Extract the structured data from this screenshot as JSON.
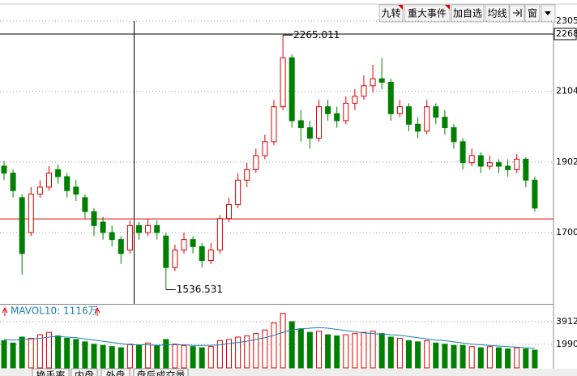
{
  "toolbar": {
    "buttons": [
      "九转",
      "重大事件",
      "加自选",
      "均线",
      "窗"
    ]
  },
  "chart_data": {
    "type": "candlestick",
    "open": [
      1890,
      1870,
      1800,
      1700,
      1810,
      1830,
      1880,
      1860,
      1830,
      1800,
      1760,
      1730,
      1700,
      1680,
      1650,
      1720,
      1700,
      1720,
      1690,
      1600,
      1650,
      1680,
      1660,
      1620,
      1650,
      1740,
      1780,
      1850,
      1880,
      1920,
      1960,
      2060,
      2200,
      2020,
      2000,
      1970,
      2060,
      2040,
      2020,
      2070,
      2090,
      2120,
      2140,
      2130,
      2040,
      2060,
      2010,
      1990,
      2060,
      2030,
      2000,
      1960,
      1900,
      1920,
      1890,
      1900,
      1890,
      1880,
      1910,
      1850
    ],
    "high": [
      1905,
      1880,
      1810,
      1830,
      1850,
      1890,
      1895,
      1870,
      1850,
      1810,
      1770,
      1745,
      1720,
      1690,
      1735,
      1730,
      1740,
      1735,
      1700,
      1665,
      1700,
      1690,
      1670,
      1670,
      1750,
      1800,
      1870,
      1900,
      1940,
      1980,
      2080,
      2265.011,
      2210,
      2050,
      2020,
      2080,
      2080,
      2060,
      2090,
      2110,
      2150,
      2180,
      2200,
      2140,
      2080,
      2070,
      2030,
      2080,
      2070,
      2050,
      2010,
      1970,
      1940,
      1930,
      1920,
      1910,
      1910,
      1925,
      1915,
      1860
    ],
    "low": [
      1850,
      1800,
      1580,
      1690,
      1800,
      1820,
      1840,
      1800,
      1790,
      1740,
      1690,
      1680,
      1660,
      1610,
      1640,
      1680,
      1690,
      1680,
      1536.531,
      1590,
      1640,
      1640,
      1600,
      1610,
      1640,
      1730,
      1770,
      1830,
      1870,
      1910,
      1950,
      2050,
      2000,
      1960,
      1940,
      1960,
      2020,
      2000,
      2010,
      2050,
      2080,
      2100,
      2110,
      2020,
      2030,
      1990,
      1970,
      1980,
      2010,
      1980,
      1940,
      1880,
      1890,
      1870,
      1880,
      1870,
      1860,
      1870,
      1830,
      1760
    ],
    "close": [
      1870,
      1820,
      1640,
      1810,
      1830,
      1870,
      1860,
      1820,
      1810,
      1760,
      1720,
      1700,
      1680,
      1640,
      1720,
      1700,
      1720,
      1700,
      1600,
      1650,
      1680,
      1660,
      1620,
      1650,
      1740,
      1780,
      1850,
      1880,
      1920,
      1960,
      2060,
      2200,
      2020,
      2000,
      1970,
      2060,
      2040,
      2020,
      2070,
      2090,
      2120,
      2140,
      2130,
      2040,
      2060,
      2010,
      1990,
      2060,
      2030,
      2000,
      1960,
      1900,
      1920,
      1890,
      1900,
      1890,
      1880,
      1910,
      1850,
      1770
    ],
    "up_color": "#e00000",
    "down_color": "#008000",
    "ylim": [
      1496,
      2305
    ],
    "yticks": [
      2305,
      2268,
      2104,
      1902,
      1700
    ],
    "grid": true,
    "ref_line": 1739,
    "ref_color": "#e00000",
    "annotations": [
      {
        "index": 31,
        "field": "high"
      },
      {
        "index": 18,
        "field": "low"
      }
    ],
    "volume": {
      "label": "MAVOL10: 1116万",
      "values": [
        2300,
        2100,
        2600,
        2500,
        2800,
        3000,
        2700,
        2500,
        2400,
        2200,
        2000,
        1900,
        1800,
        1700,
        2000,
        1900,
        2100,
        1900,
        2400,
        2000,
        1900,
        1800,
        1700,
        1800,
        2300,
        2400,
        2600,
        2700,
        2900,
        3200,
        3800,
        4600,
        3900,
        3300,
        3000,
        3100,
        2800,
        2700,
        2800,
        2900,
        3000,
        3100,
        2900,
        2600,
        2500,
        2300,
        2200,
        2300,
        2100,
        2000,
        1900,
        1900,
        1800,
        1700,
        1800,
        1700,
        1600,
        1700,
        1600,
        1500
      ],
      "ma": [
        2400,
        2350,
        2400,
        2450,
        2500,
        2600,
        2650,
        2600,
        2550,
        2450,
        2350,
        2250,
        2150,
        2050,
        1950,
        1950,
        1950,
        1900,
        1950,
        1950,
        1950,
        1900,
        1900,
        1900,
        1950,
        2050,
        2150,
        2250,
        2400,
        2550,
        2750,
        3000,
        3200,
        3300,
        3350,
        3400,
        3350,
        3250,
        3150,
        3050,
        2950,
        2900,
        2850,
        2800,
        2750,
        2650,
        2550,
        2450,
        2350,
        2300,
        2200,
        2100,
        2000,
        1950,
        1900,
        1850,
        1800,
        1750,
        1700,
        1650
      ],
      "ma_color": "#1a7fb0",
      "ylim": [
        0,
        5200
      ],
      "yticks": [
        3912,
        1990
      ]
    }
  },
  "tabs": [
    "换手率",
    "内盘",
    "外盘",
    "盘后成交量"
  ]
}
